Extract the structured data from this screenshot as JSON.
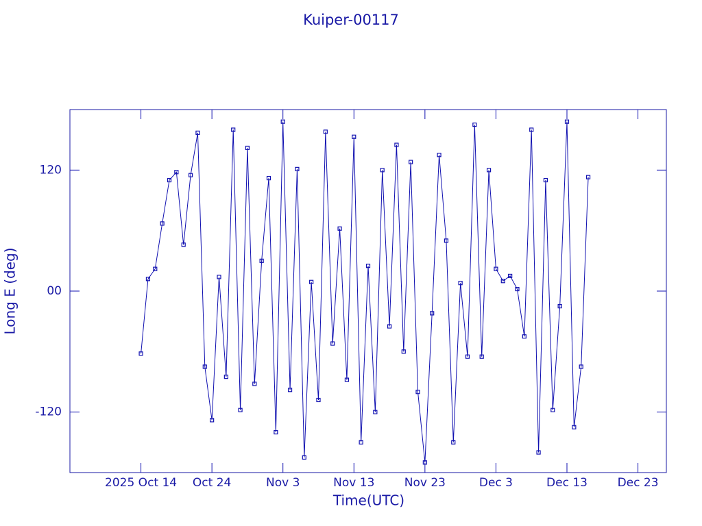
{
  "chart_data": {
    "type": "line",
    "title": "Kuiper-00117",
    "x_label": "Time(UTC)",
    "y_label": "Long E (deg)",
    "color": "#1010b0",
    "xlim": [
      "2025-10-04",
      "2025-12-27"
    ],
    "xticks": [
      {
        "value": "2025-10-14",
        "label": "2025 Oct 14"
      },
      {
        "value": "2025-10-24",
        "label": "Oct 24"
      },
      {
        "value": "2025-11-03",
        "label": "Nov 3"
      },
      {
        "value": "2025-11-13",
        "label": "Nov 13"
      },
      {
        "value": "2025-11-23",
        "label": "Nov 23"
      },
      {
        "value": "2025-12-03",
        "label": "Dec 3"
      },
      {
        "value": "2025-12-13",
        "label": "Dec 13"
      },
      {
        "value": "2025-12-23",
        "label": "Dec 23"
      }
    ],
    "ylim": [
      -180,
      180
    ],
    "yticks": [
      -120,
      {
        "value": 0,
        "label": "00"
      },
      120
    ],
    "x": [
      "2025-10-14",
      "2025-10-15",
      "2025-10-16",
      "2025-10-17",
      "2025-10-18",
      "2025-10-19",
      "2025-10-20",
      "2025-10-21",
      "2025-10-22",
      "2025-10-23",
      "2025-10-24",
      "2025-10-25",
      "2025-10-26",
      "2025-10-27",
      "2025-10-28",
      "2025-10-29",
      "2025-10-30",
      "2025-10-31",
      "2025-11-01",
      "2025-11-02",
      "2025-11-03",
      "2025-11-04",
      "2025-11-05",
      "2025-11-06",
      "2025-11-07",
      "2025-11-08",
      "2025-11-09",
      "2025-11-10",
      "2025-11-11",
      "2025-11-12",
      "2025-11-13",
      "2025-11-14",
      "2025-11-15",
      "2025-11-16",
      "2025-11-17",
      "2025-11-18",
      "2025-11-19",
      "2025-11-20",
      "2025-11-21",
      "2025-11-22",
      "2025-11-23",
      "2025-11-24",
      "2025-11-25",
      "2025-11-26",
      "2025-11-27",
      "2025-11-28",
      "2025-11-29",
      "2025-11-30",
      "2025-12-01",
      "2025-12-02",
      "2025-12-03",
      "2025-12-04",
      "2025-12-05",
      "2025-12-06",
      "2025-12-07",
      "2025-12-08",
      "2025-12-09",
      "2025-12-10",
      "2025-12-11",
      "2025-12-12",
      "2025-12-13",
      "2025-12-14",
      "2025-12-15",
      "2025-12-16"
    ],
    "values": [
      -62,
      12,
      22,
      67,
      110,
      118,
      46,
      115,
      157,
      -75,
      -128,
      14,
      -85,
      160,
      -118,
      142,
      -92,
      30,
      112,
      -140,
      168,
      -98,
      121,
      -165,
      9,
      -108,
      158,
      -52,
      62,
      -88,
      153,
      -150,
      25,
      -120,
      120,
      -35,
      145,
      -60,
      128,
      -100,
      -170,
      -22,
      135,
      50,
      -150,
      8,
      -65,
      165,
      -65,
      120,
      22,
      10,
      15,
      2,
      -45,
      160,
      -160,
      110,
      -118,
      -15,
      168,
      -135,
      -75,
      113
    ]
  }
}
